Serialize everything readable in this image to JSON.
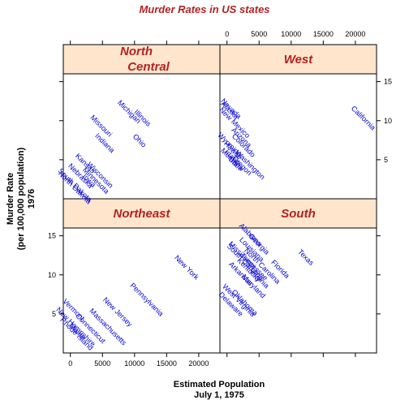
{
  "chart_data": {
    "type": "scatter",
    "title": "Murder Rates in US states",
    "xlabel": [
      "Estimated Population",
      "July 1, 1975"
    ],
    "ylabel": [
      "Murder Rate",
      "(per 100,000 population)",
      "1976"
    ],
    "x_ticks": [
      0,
      5000,
      10000,
      15000,
      20000
    ],
    "y_ticks": [
      5,
      10,
      15
    ],
    "xlim": [
      -1100,
      23300
    ],
    "ylim": [
      0,
      16
    ],
    "colors": {
      "strip": "#ffe5cc",
      "strip_text": "#b22222",
      "labels": "#0000cd"
    },
    "panels": [
      {
        "name": "Northeast",
        "strip": [
          "Northeast"
        ],
        "points": [
          {
            "label": "New York",
            "x": 18076,
            "y": 10.9
          },
          {
            "label": "Pennsylvania",
            "x": 11860,
            "y": 6.8
          },
          {
            "label": "New Jersey",
            "x": 7333,
            "y": 5.2
          },
          {
            "label": "Massachusetts",
            "x": 5814,
            "y": 3.3
          },
          {
            "label": "Connecticut",
            "x": 3100,
            "y": 3.1
          },
          {
            "label": "Maine",
            "x": 1058,
            "y": 2.7
          },
          {
            "label": "Rhode Island",
            "x": 931,
            "y": 2.4
          },
          {
            "label": "New Hampshire",
            "x": 812,
            "y": 3.3
          },
          {
            "label": "Vermont",
            "x": 472,
            "y": 5.5
          }
        ]
      },
      {
        "name": "South",
        "strip": [
          "South"
        ],
        "points": [
          {
            "label": "Texas",
            "x": 12237,
            "y": 12.2
          },
          {
            "label": "Florida",
            "x": 8277,
            "y": 10.7
          },
          {
            "label": "Georgia",
            "x": 4931,
            "y": 13.9
          },
          {
            "label": "North Carolina",
            "x": 5441,
            "y": 11.1
          },
          {
            "label": "Virginia",
            "x": 4981,
            "y": 9.5
          },
          {
            "label": "Tennessee",
            "x": 4173,
            "y": 11.0
          },
          {
            "label": "Alabama",
            "x": 3615,
            "y": 15.1
          },
          {
            "label": "Louisiana",
            "x": 3806,
            "y": 13.2
          },
          {
            "label": "South Carolina",
            "x": 2816,
            "y": 11.6
          },
          {
            "label": "Mississippi",
            "x": 2341,
            "y": 12.5
          },
          {
            "label": "Kentucky",
            "x": 3387,
            "y": 10.6
          },
          {
            "label": "Maryland",
            "x": 4122,
            "y": 8.5
          },
          {
            "label": "Oklahoma",
            "x": 2715,
            "y": 6.4
          },
          {
            "label": "Arkansas",
            "x": 2110,
            "y": 10.1
          },
          {
            "label": "West Virginia",
            "x": 1799,
            "y": 6.7
          },
          {
            "label": "Delaware",
            "x": 579,
            "y": 6.2
          }
        ]
      },
      {
        "name": "North Central",
        "strip": [
          "North",
          "Central"
        ],
        "points": [
          {
            "label": "Illinois",
            "x": 11197,
            "y": 10.3
          },
          {
            "label": "Ohio",
            "x": 10735,
            "y": 7.4
          },
          {
            "label": "Michigan",
            "x": 9111,
            "y": 11.1
          },
          {
            "label": "Indiana",
            "x": 5313,
            "y": 7.1
          },
          {
            "label": "Missouri",
            "x": 4767,
            "y": 9.3
          },
          {
            "label": "Wisconsin",
            "x": 4589,
            "y": 3.0
          },
          {
            "label": "Minnesota",
            "x": 3921,
            "y": 2.3
          },
          {
            "label": "Iowa",
            "x": 2861,
            "y": 2.3
          },
          {
            "label": "Kansas",
            "x": 2280,
            "y": 4.5
          },
          {
            "label": "Nebraska",
            "x": 1544,
            "y": 2.9
          },
          {
            "label": "South Dakota",
            "x": 681,
            "y": 1.7
          },
          {
            "label": "North Dakota",
            "x": 637,
            "y": 1.4
          }
        ]
      },
      {
        "name": "West",
        "strip": [
          "West"
        ],
        "points": [
          {
            "label": "California",
            "x": 21198,
            "y": 10.3
          },
          {
            "label": "Washington",
            "x": 3559,
            "y": 4.3
          },
          {
            "label": "Colorado",
            "x": 2541,
            "y": 6.8
          },
          {
            "label": "Arizona",
            "x": 2212,
            "y": 7.8
          },
          {
            "label": "Oregon",
            "x": 2284,
            "y": 4.2
          },
          {
            "label": "Utah",
            "x": 1203,
            "y": 4.5
          },
          {
            "label": "New Mexico",
            "x": 1144,
            "y": 9.7
          },
          {
            "label": "Idaho",
            "x": 813,
            "y": 5.3
          },
          {
            "label": "Montana",
            "x": 746,
            "y": 5.0
          },
          {
            "label": "Hawaii",
            "x": 868,
            "y": 6.2
          },
          {
            "label": "Nevada",
            "x": 590,
            "y": 11.5
          },
          {
            "label": "Wyoming",
            "x": 376,
            "y": 6.9
          },
          {
            "label": "Alaska",
            "x": 365,
            "y": 11.3
          }
        ]
      }
    ]
  }
}
